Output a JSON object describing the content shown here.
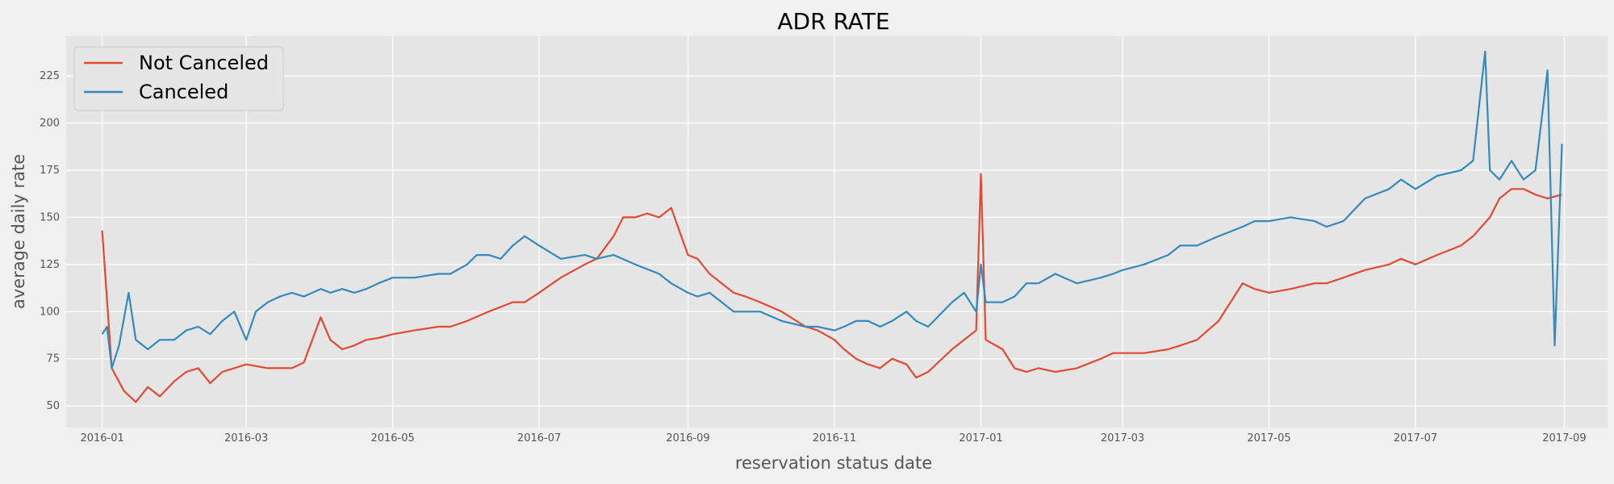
{
  "chart_data": {
    "type": "line",
    "title": "ADR RATE",
    "xlabel": "reservation status date",
    "ylabel": "average daily rate",
    "x_range": [
      "2015-12-17",
      "2017-09-19"
    ],
    "ylim": [
      38.5,
      246
    ],
    "x_ticks": [
      "2016-01",
      "2016-03",
      "2016-05",
      "2016-07",
      "2016-09",
      "2016-11",
      "2017-01",
      "2017-03",
      "2017-05",
      "2017-07",
      "2017-09"
    ],
    "y_ticks": [
      50,
      75,
      100,
      125,
      150,
      175,
      200,
      225
    ],
    "grid": true,
    "legend_position": "upper-left",
    "series": [
      {
        "name": "Not Canceled",
        "color": "#E24A33",
        "points": [
          [
            "2016-01-01",
            143
          ],
          [
            "2016-01-05",
            70
          ],
          [
            "2016-01-10",
            58
          ],
          [
            "2016-01-15",
            52
          ],
          [
            "2016-01-20",
            60
          ],
          [
            "2016-01-25",
            55
          ],
          [
            "2016-01-31",
            63
          ],
          [
            "2016-02-05",
            68
          ],
          [
            "2016-02-10",
            70
          ],
          [
            "2016-02-15",
            62
          ],
          [
            "2016-02-20",
            68
          ],
          [
            "2016-02-25",
            70
          ],
          [
            "2016-03-01",
            72
          ],
          [
            "2016-03-10",
            70
          ],
          [
            "2016-03-20",
            70
          ],
          [
            "2016-03-25",
            73
          ],
          [
            "2016-04-01",
            97
          ],
          [
            "2016-04-05",
            85
          ],
          [
            "2016-04-10",
            80
          ],
          [
            "2016-04-15",
            82
          ],
          [
            "2016-04-20",
            85
          ],
          [
            "2016-04-25",
            86
          ],
          [
            "2016-05-01",
            88
          ],
          [
            "2016-05-10",
            90
          ],
          [
            "2016-05-20",
            92
          ],
          [
            "2016-05-25",
            92
          ],
          [
            "2016-06-01",
            95
          ],
          [
            "2016-06-10",
            100
          ],
          [
            "2016-06-20",
            105
          ],
          [
            "2016-06-25",
            105
          ],
          [
            "2016-07-01",
            110
          ],
          [
            "2016-07-10",
            118
          ],
          [
            "2016-07-20",
            125
          ],
          [
            "2016-07-25",
            128
          ],
          [
            "2016-08-01",
            140
          ],
          [
            "2016-08-05",
            150
          ],
          [
            "2016-08-10",
            150
          ],
          [
            "2016-08-15",
            152
          ],
          [
            "2016-08-20",
            150
          ],
          [
            "2016-08-25",
            155
          ],
          [
            "2016-09-01",
            130
          ],
          [
            "2016-09-05",
            128
          ],
          [
            "2016-09-10",
            120
          ],
          [
            "2016-09-15",
            115
          ],
          [
            "2016-09-20",
            110
          ],
          [
            "2016-09-25",
            108
          ],
          [
            "2016-10-01",
            105
          ],
          [
            "2016-10-10",
            100
          ],
          [
            "2016-10-20",
            92
          ],
          [
            "2016-10-25",
            90
          ],
          [
            "2016-11-01",
            85
          ],
          [
            "2016-11-05",
            80
          ],
          [
            "2016-11-10",
            75
          ],
          [
            "2016-11-15",
            72
          ],
          [
            "2016-11-20",
            70
          ],
          [
            "2016-11-25",
            75
          ],
          [
            "2016-12-01",
            72
          ],
          [
            "2016-12-05",
            65
          ],
          [
            "2016-12-10",
            68
          ],
          [
            "2016-12-20",
            80
          ],
          [
            "2016-12-25",
            85
          ],
          [
            "2016-12-30",
            90
          ],
          [
            "2017-01-01",
            173
          ],
          [
            "2017-01-03",
            85
          ],
          [
            "2017-01-10",
            80
          ],
          [
            "2017-01-15",
            70
          ],
          [
            "2017-01-20",
            68
          ],
          [
            "2017-01-25",
            70
          ],
          [
            "2017-02-01",
            68
          ],
          [
            "2017-02-10",
            70
          ],
          [
            "2017-02-20",
            75
          ],
          [
            "2017-02-25",
            78
          ],
          [
            "2017-03-01",
            78
          ],
          [
            "2017-03-10",
            78
          ],
          [
            "2017-03-20",
            80
          ],
          [
            "2017-03-25",
            82
          ],
          [
            "2017-04-01",
            85
          ],
          [
            "2017-04-10",
            95
          ],
          [
            "2017-04-20",
            115
          ],
          [
            "2017-04-25",
            112
          ],
          [
            "2017-05-01",
            110
          ],
          [
            "2017-05-10",
            112
          ],
          [
            "2017-05-20",
            115
          ],
          [
            "2017-05-25",
            115
          ],
          [
            "2017-06-01",
            118
          ],
          [
            "2017-06-10",
            122
          ],
          [
            "2017-06-20",
            125
          ],
          [
            "2017-06-25",
            128
          ],
          [
            "2017-07-01",
            125
          ],
          [
            "2017-07-10",
            130
          ],
          [
            "2017-07-20",
            135
          ],
          [
            "2017-07-25",
            140
          ],
          [
            "2017-08-01",
            150
          ],
          [
            "2017-08-05",
            160
          ],
          [
            "2017-08-10",
            165
          ],
          [
            "2017-08-15",
            165
          ],
          [
            "2017-08-20",
            162
          ],
          [
            "2017-08-25",
            160
          ],
          [
            "2017-08-31",
            162
          ]
        ]
      },
      {
        "name": "Canceled",
        "color": "#348ABD",
        "points": [
          [
            "2016-01-01",
            88
          ],
          [
            "2016-01-03",
            92
          ],
          [
            "2016-01-05",
            70
          ],
          [
            "2016-01-08",
            82
          ],
          [
            "2016-01-12",
            110
          ],
          [
            "2016-01-15",
            85
          ],
          [
            "2016-01-20",
            80
          ],
          [
            "2016-01-25",
            85
          ],
          [
            "2016-01-31",
            85
          ],
          [
            "2016-02-05",
            90
          ],
          [
            "2016-02-10",
            92
          ],
          [
            "2016-02-15",
            88
          ],
          [
            "2016-02-20",
            95
          ],
          [
            "2016-02-25",
            100
          ],
          [
            "2016-03-01",
            85
          ],
          [
            "2016-03-05",
            100
          ],
          [
            "2016-03-10",
            105
          ],
          [
            "2016-03-15",
            108
          ],
          [
            "2016-03-20",
            110
          ],
          [
            "2016-03-25",
            108
          ],
          [
            "2016-04-01",
            112
          ],
          [
            "2016-04-05",
            110
          ],
          [
            "2016-04-10",
            112
          ],
          [
            "2016-04-15",
            110
          ],
          [
            "2016-04-20",
            112
          ],
          [
            "2016-04-25",
            115
          ],
          [
            "2016-05-01",
            118
          ],
          [
            "2016-05-10",
            118
          ],
          [
            "2016-05-20",
            120
          ],
          [
            "2016-05-25",
            120
          ],
          [
            "2016-06-01",
            125
          ],
          [
            "2016-06-05",
            130
          ],
          [
            "2016-06-10",
            130
          ],
          [
            "2016-06-15",
            128
          ],
          [
            "2016-06-20",
            135
          ],
          [
            "2016-06-25",
            140
          ],
          [
            "2016-07-01",
            135
          ],
          [
            "2016-07-10",
            128
          ],
          [
            "2016-07-20",
            130
          ],
          [
            "2016-07-25",
            128
          ],
          [
            "2016-08-01",
            130
          ],
          [
            "2016-08-10",
            125
          ],
          [
            "2016-08-20",
            120
          ],
          [
            "2016-08-25",
            115
          ],
          [
            "2016-09-01",
            110
          ],
          [
            "2016-09-05",
            108
          ],
          [
            "2016-09-10",
            110
          ],
          [
            "2016-09-15",
            105
          ],
          [
            "2016-09-20",
            100
          ],
          [
            "2016-09-25",
            100
          ],
          [
            "2016-10-01",
            100
          ],
          [
            "2016-10-10",
            95
          ],
          [
            "2016-10-20",
            92
          ],
          [
            "2016-10-25",
            92
          ],
          [
            "2016-11-01",
            90
          ],
          [
            "2016-11-05",
            92
          ],
          [
            "2016-11-10",
            95
          ],
          [
            "2016-11-15",
            95
          ],
          [
            "2016-11-20",
            92
          ],
          [
            "2016-11-25",
            95
          ],
          [
            "2016-12-01",
            100
          ],
          [
            "2016-12-05",
            95
          ],
          [
            "2016-12-10",
            92
          ],
          [
            "2016-12-20",
            105
          ],
          [
            "2016-12-25",
            110
          ],
          [
            "2016-12-30",
            100
          ],
          [
            "2017-01-01",
            125
          ],
          [
            "2017-01-03",
            105
          ],
          [
            "2017-01-10",
            105
          ],
          [
            "2017-01-15",
            108
          ],
          [
            "2017-01-20",
            115
          ],
          [
            "2017-01-25",
            115
          ],
          [
            "2017-02-01",
            120
          ],
          [
            "2017-02-10",
            115
          ],
          [
            "2017-02-20",
            118
          ],
          [
            "2017-02-25",
            120
          ],
          [
            "2017-03-01",
            122
          ],
          [
            "2017-03-10",
            125
          ],
          [
            "2017-03-20",
            130
          ],
          [
            "2017-03-25",
            135
          ],
          [
            "2017-04-01",
            135
          ],
          [
            "2017-04-10",
            140
          ],
          [
            "2017-04-20",
            145
          ],
          [
            "2017-04-25",
            148
          ],
          [
            "2017-05-01",
            148
          ],
          [
            "2017-05-10",
            150
          ],
          [
            "2017-05-20",
            148
          ],
          [
            "2017-05-25",
            145
          ],
          [
            "2017-06-01",
            148
          ],
          [
            "2017-06-10",
            160
          ],
          [
            "2017-06-20",
            165
          ],
          [
            "2017-06-25",
            170
          ],
          [
            "2017-07-01",
            165
          ],
          [
            "2017-07-10",
            172
          ],
          [
            "2017-07-20",
            175
          ],
          [
            "2017-07-25",
            180
          ],
          [
            "2017-07-30",
            238
          ],
          [
            "2017-08-01",
            175
          ],
          [
            "2017-08-05",
            170
          ],
          [
            "2017-08-10",
            180
          ],
          [
            "2017-08-15",
            170
          ],
          [
            "2017-08-20",
            175
          ],
          [
            "2017-08-25",
            228
          ],
          [
            "2017-08-28",
            82
          ],
          [
            "2017-08-31",
            189
          ]
        ]
      }
    ]
  }
}
